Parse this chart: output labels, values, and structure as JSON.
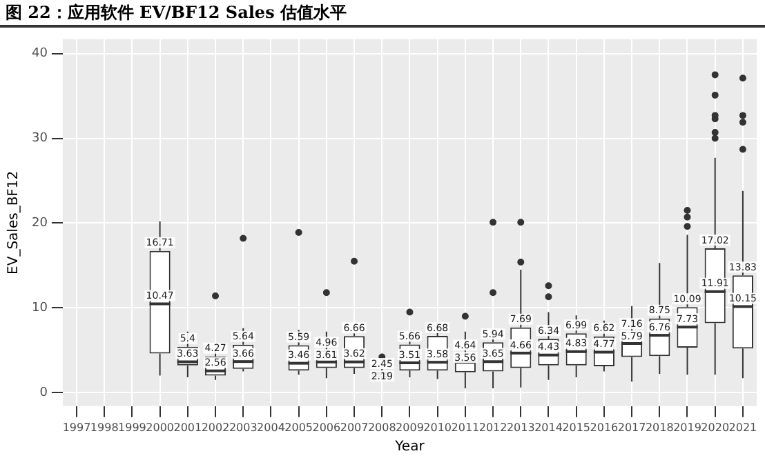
{
  "chart_data": {
    "type": "box",
    "title": "图 22：应用软件 EV/BF12 Sales 估值水平",
    "xlabel": "Year",
    "ylabel": "EV_Sales_BF12",
    "categories": [
      "1997",
      "1998",
      "1999",
      "2000",
      "2001",
      "2002",
      "2003",
      "2004",
      "2005",
      "2006",
      "2007",
      "2008",
      "2009",
      "2010",
      "2011",
      "2012",
      "2013",
      "2014",
      "2015",
      "2016",
      "2017",
      "2018",
      "2019",
      "2020",
      "2021"
    ],
    "boxes": [
      null,
      null,
      null,
      {
        "low": 2.0,
        "q1": 4.6,
        "median": 10.47,
        "q3": 16.71,
        "high": 20.2
      },
      {
        "low": 1.8,
        "q1": 3.2,
        "median": 3.63,
        "q3": 5.4,
        "high": 7.2
      },
      {
        "low": 1.5,
        "q1": 2.0,
        "median": 2.56,
        "q3": 4.27,
        "high": 5.1,
        "outliers": [
          11.4
        ]
      },
      {
        "low": 2.5,
        "q1": 2.8,
        "median": 3.66,
        "q3": 5.64,
        "high": 7.6,
        "outliers": [
          18.2
        ]
      },
      null,
      {
        "low": 2.1,
        "q1": 2.6,
        "median": 3.46,
        "q3": 5.59,
        "high": 7.4,
        "outliers": [
          18.9
        ]
      },
      {
        "low": 1.7,
        "q1": 2.9,
        "median": 3.61,
        "q3": 4.96,
        "high": 7.2,
        "outliers": [
          11.8
        ]
      },
      {
        "low": 2.2,
        "q1": 2.9,
        "median": 3.62,
        "q3": 6.66,
        "high": 7.0,
        "outliers": [
          15.5
        ]
      },
      {
        "low": 1.5,
        "q1": 1.8,
        "median": 2.19,
        "q3": 2.45,
        "high": 2.8,
        "outliers": [
          4.2
        ]
      },
      {
        "low": 1.8,
        "q1": 2.6,
        "median": 3.51,
        "q3": 5.66,
        "high": 6.7,
        "outliers": [
          9.5
        ]
      },
      {
        "low": 1.6,
        "q1": 2.6,
        "median": 3.58,
        "q3": 6.68,
        "high": 8.3
      },
      {
        "low": 0.5,
        "q1": 2.4,
        "median": 3.56,
        "q3": 4.64,
        "high": 7.2,
        "outliers": [
          9.0
        ]
      },
      {
        "low": 0.5,
        "q1": 2.5,
        "median": 3.65,
        "q3": 5.94,
        "high": 7.5,
        "outliers": [
          11.8,
          20.1
        ]
      },
      {
        "low": 0.6,
        "q1": 2.9,
        "median": 4.66,
        "q3": 7.69,
        "high": 14.5,
        "outliers": [
          15.4,
          20.1
        ]
      },
      {
        "low": 1.5,
        "q1": 3.2,
        "median": 4.43,
        "q3": 6.34,
        "high": 9.5,
        "outliers": [
          11.3,
          12.6
        ]
      },
      {
        "low": 1.8,
        "q1": 3.2,
        "median": 4.83,
        "q3": 6.99,
        "high": 9.1
      },
      {
        "low": 2.5,
        "q1": 3.1,
        "median": 4.77,
        "q3": 6.62,
        "high": 8.5
      },
      {
        "low": 1.3,
        "q1": 4.2,
        "median": 5.79,
        "q3": 7.16,
        "high": 10.2
      },
      {
        "low": 2.2,
        "q1": 4.3,
        "median": 6.76,
        "q3": 8.75,
        "high": 15.3
      },
      {
        "low": 2.1,
        "q1": 5.3,
        "median": 7.73,
        "q3": 10.09,
        "high": 18.6,
        "outliers": [
          19.6,
          20.7,
          21.5
        ]
      },
      {
        "low": 2.1,
        "q1": 8.2,
        "median": 11.91,
        "q3": 17.02,
        "high": 27.7,
        "outliers": [
          30.0,
          30.7,
          32.3,
          32.7,
          35.1,
          37.5
        ]
      },
      {
        "low": 1.7,
        "q1": 5.2,
        "median": 10.15,
        "q3": 13.83,
        "high": 23.8,
        "outliers": [
          28.7,
          31.9,
          32.7,
          37.1
        ]
      }
    ],
    "annotations": [
      {
        "text": "16.71",
        "x": "2000",
        "y": 16.71
      },
      {
        "text": "10.47",
        "x": "2000",
        "y": 10.47
      },
      {
        "text": "5.4",
        "x": "2001",
        "y": 5.4
      },
      {
        "text": "3.63",
        "x": "2001",
        "y": 3.63
      },
      {
        "text": "4.27",
        "x": "2002",
        "y": 4.27
      },
      {
        "text": "2.56",
        "x": "2002",
        "y": 2.56
      },
      {
        "text": "5.64",
        "x": "2003",
        "y": 5.64
      },
      {
        "text": "3.66",
        "x": "2003",
        "y": 3.66
      },
      {
        "text": "5.59",
        "x": "2005",
        "y": 5.59
      },
      {
        "text": "3.46",
        "x": "2005",
        "y": 3.46
      },
      {
        "text": "4.96",
        "x": "2006",
        "y": 4.96
      },
      {
        "text": "3.61",
        "x": "2006",
        "y": 3.61
      },
      {
        "text": "6.66",
        "x": "2007",
        "y": 6.66
      },
      {
        "text": "3.62",
        "x": "2007",
        "y": 3.62
      },
      {
        "text": "2.45",
        "x": "2008",
        "y": 2.45
      },
      {
        "text": "2.19",
        "x": "2008",
        "y": 2.19
      },
      {
        "text": "5.66",
        "x": "2009",
        "y": 5.66
      },
      {
        "text": "3.51",
        "x": "2009",
        "y": 3.51
      },
      {
        "text": "6.68",
        "x": "2010",
        "y": 6.68
      },
      {
        "text": "3.58",
        "x": "2010",
        "y": 3.58
      },
      {
        "text": "4.64",
        "x": "2011",
        "y": 4.64
      },
      {
        "text": "3.56",
        "x": "2011",
        "y": 3.56
      },
      {
        "text": "5.94",
        "x": "2012",
        "y": 5.94
      },
      {
        "text": "3.65",
        "x": "2012",
        "y": 3.65
      },
      {
        "text": "7.69",
        "x": "2013",
        "y": 7.69
      },
      {
        "text": "4.66",
        "x": "2013",
        "y": 4.66
      },
      {
        "text": "6.34",
        "x": "2014",
        "y": 6.34
      },
      {
        "text": "4.43",
        "x": "2014",
        "y": 4.43
      },
      {
        "text": "6.99",
        "x": "2015",
        "y": 6.99
      },
      {
        "text": "4.83",
        "x": "2015",
        "y": 4.83
      },
      {
        "text": "6.62",
        "x": "2016",
        "y": 6.62
      },
      {
        "text": "4.77",
        "x": "2016",
        "y": 4.77
      },
      {
        "text": "7.16",
        "x": "2017",
        "y": 7.16
      },
      {
        "text": "5.79",
        "x": "2017",
        "y": 5.79
      },
      {
        "text": "8.75",
        "x": "2018",
        "y": 8.75
      },
      {
        "text": "6.76",
        "x": "2018",
        "y": 6.76
      },
      {
        "text": "10.09",
        "x": "2019",
        "y": 10.09
      },
      {
        "text": "7.73",
        "x": "2019",
        "y": 7.73
      },
      {
        "text": "17.02",
        "x": "2020",
        "y": 17.02
      },
      {
        "text": "11.91",
        "x": "2020",
        "y": 11.91
      },
      {
        "text": "13.83",
        "x": "2021",
        "y": 13.83
      },
      {
        "text": "10.15",
        "x": "2021",
        "y": 10.15
      }
    ],
    "color": "#333333",
    "ylim": [
      -1.6,
      41.7
    ],
    "yticks": [
      0,
      10,
      20,
      30,
      40
    ],
    "grid": true,
    "legend": false
  }
}
